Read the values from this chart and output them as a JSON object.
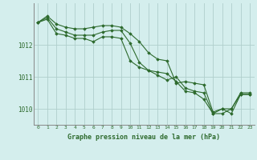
{
  "x": [
    0,
    1,
    2,
    3,
    4,
    5,
    6,
    7,
    8,
    9,
    10,
    11,
    12,
    13,
    14,
    15,
    16,
    17,
    18,
    19,
    20,
    21,
    22,
    23
  ],
  "line1": [
    1012.7,
    1012.9,
    1012.65,
    1012.55,
    1012.5,
    1012.5,
    1012.55,
    1012.6,
    1012.6,
    1012.55,
    1012.35,
    1012.1,
    1011.75,
    1011.55,
    1011.5,
    1010.8,
    1010.85,
    1010.8,
    1010.75,
    1009.9,
    1010.0,
    1010.0,
    1010.5,
    1010.5
  ],
  "line2": [
    1012.7,
    1012.85,
    1012.5,
    1012.4,
    1012.3,
    1012.3,
    1012.3,
    1012.4,
    1012.45,
    1012.45,
    1012.05,
    1011.45,
    1011.2,
    1011.05,
    1010.9,
    1011.0,
    1010.65,
    1010.55,
    1010.5,
    1009.85,
    1010.0,
    1009.85,
    1010.45,
    1010.45
  ],
  "line3": [
    1012.7,
    1012.8,
    1012.35,
    1012.3,
    1012.2,
    1012.2,
    1012.1,
    1012.25,
    1012.25,
    1012.2,
    1011.5,
    1011.3,
    1011.2,
    1011.15,
    1011.1,
    1010.85,
    1010.55,
    1010.5,
    1010.3,
    1009.85,
    1009.85,
    1010.0,
    1010.45,
    1010.45
  ],
  "line_color": "#2d6a2d",
  "bg_color": "#d4eeed",
  "grid_color": "#b0cecc",
  "ylim": [
    1009.5,
    1013.3
  ],
  "yticks": [
    1010,
    1011,
    1012
  ],
  "xlabel": "Graphe pression niveau de la mer (hPa)",
  "marker": "D",
  "marker_size": 1.8,
  "line_width": 0.8
}
